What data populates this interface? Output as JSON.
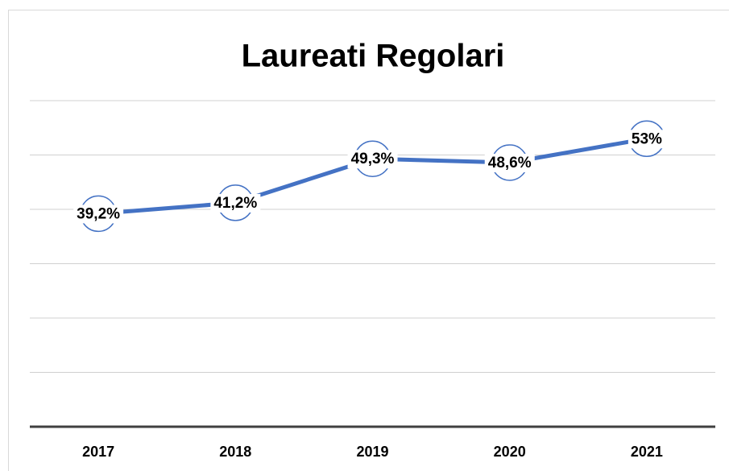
{
  "chart_data": {
    "type": "line",
    "title": "Laureati Regolari",
    "categories": [
      "2017",
      "2018",
      "2019",
      "2020",
      "2021"
    ],
    "series": [
      {
        "color": "#4472c4",
        "values": [
          39.2,
          41.2,
          49.3,
          48.6,
          53
        ],
        "value_labels": [
          "39,2%",
          "41,2%",
          "49,3%",
          "48,6%",
          "53%"
        ]
      }
    ],
    "ylim": [
      0,
      60
    ],
    "yticks": [
      0,
      10,
      20,
      30,
      40,
      50,
      60
    ],
    "grid": true
  }
}
